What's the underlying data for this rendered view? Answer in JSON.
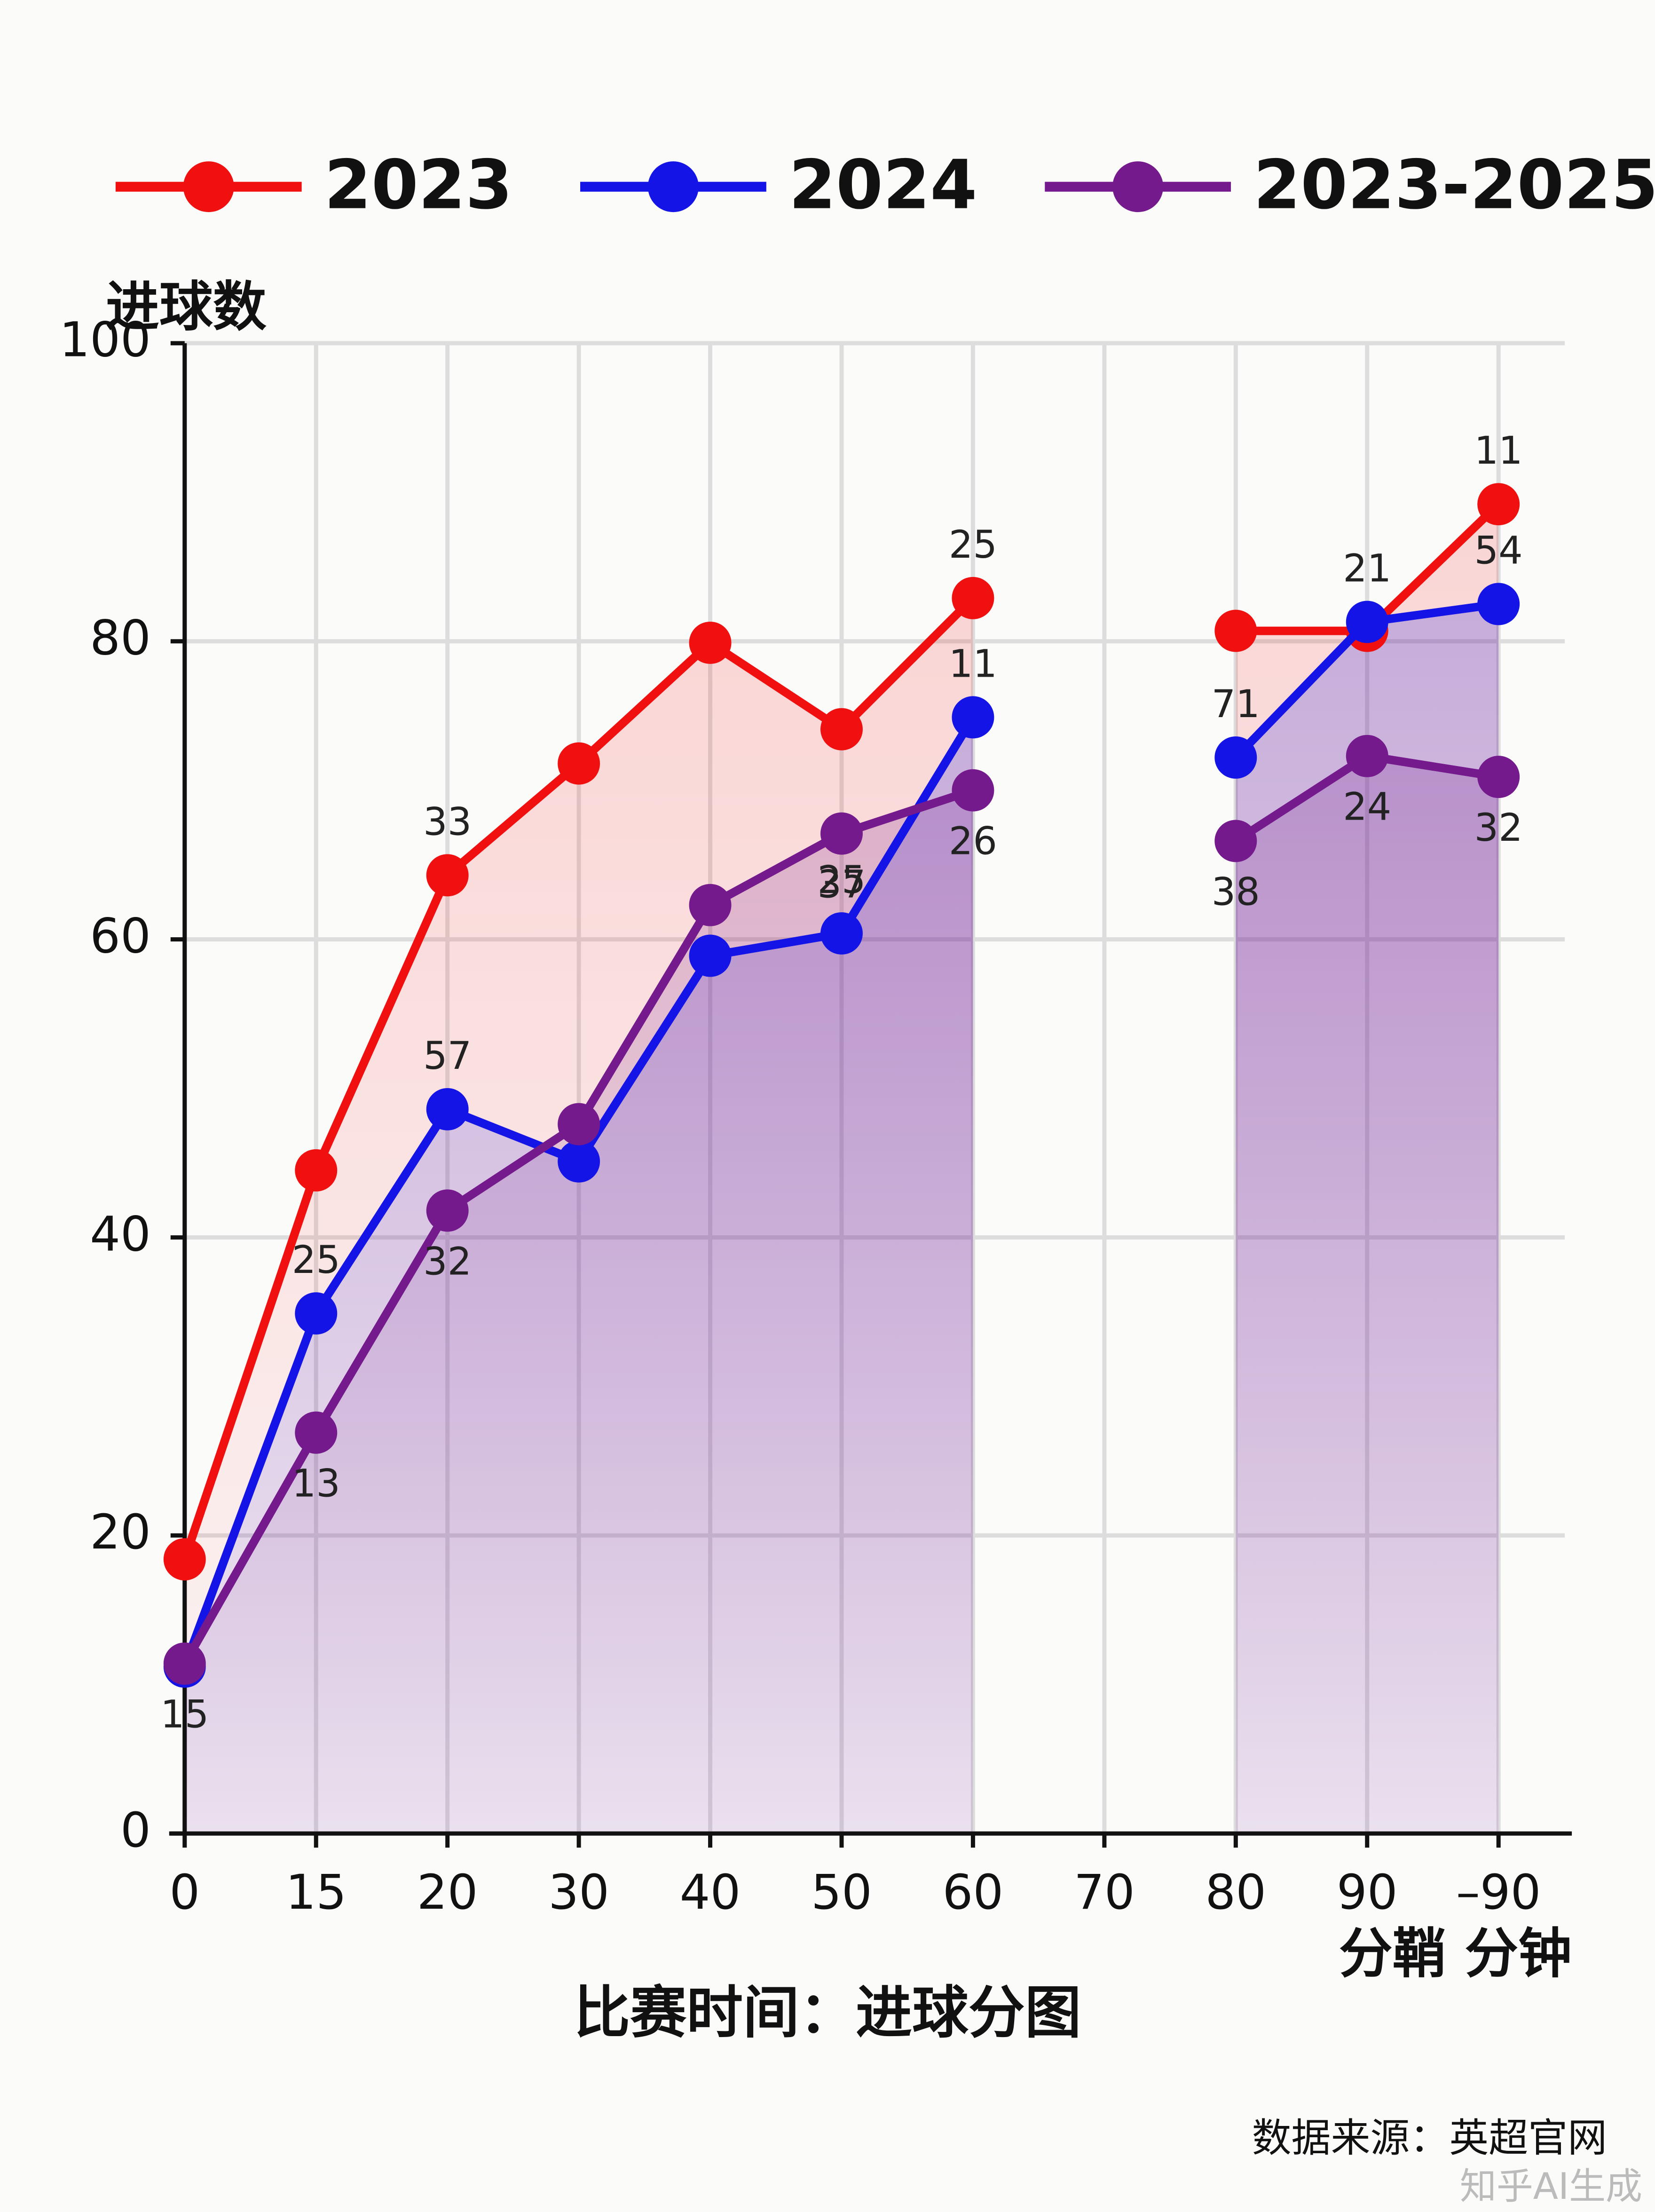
{
  "chart_data": {
    "type": "line",
    "y_label": "进球数",
    "x_unit_label": "分鞘 分钟",
    "title": "比赛时间：进球分图",
    "source": "数据来源：英超官网",
    "watermark": "知乎AI生成",
    "categories": [
      "0",
      "15",
      "20",
      "30",
      "40",
      "50",
      "60",
      "70",
      "80",
      "90",
      "–90"
    ],
    "ylim": [
      0,
      100
    ],
    "yticks": [
      0,
      20,
      40,
      60,
      80,
      100
    ],
    "grid": true,
    "legend": "top",
    "series": [
      {
        "name": "2023",
        "color": "#f01010",
        "values": [
          18.4,
          44.5,
          64.3,
          71.8,
          79.9,
          74.1,
          82.9,
          null,
          80.7,
          80.7,
          89.2
        ],
        "point_labels": [
          null,
          null,
          "33",
          null,
          null,
          null,
          "25",
          null,
          null,
          null,
          "11"
        ]
      },
      {
        "name": "2024",
        "color": "#1414e6",
        "values": [
          11.2,
          34.9,
          48.6,
          45.1,
          58.9,
          60.4,
          74.9,
          null,
          72.2,
          81.3,
          82.5
        ],
        "point_labels": [
          null,
          "25",
          "57",
          null,
          null,
          "25",
          "11",
          null,
          "71",
          "21",
          "54"
        ]
      },
      {
        "name": "2023-2025",
        "color": "#741a8c",
        "values": [
          11.4,
          26.9,
          41.8,
          47.6,
          62.3,
          67.1,
          70.0,
          null,
          66.6,
          72.3,
          70.9
        ],
        "point_labels": [
          "15",
          "13",
          "32",
          null,
          null,
          "37",
          "26",
          null,
          "38",
          "24",
          "32"
        ]
      }
    ]
  }
}
